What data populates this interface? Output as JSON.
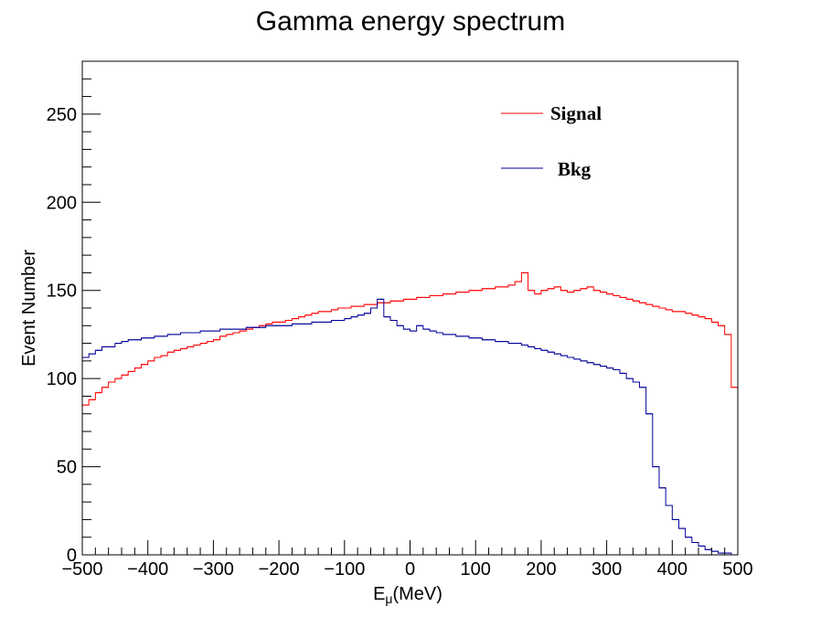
{
  "chart_data": {
    "type": "line",
    "title": "Gamma energy spectrum",
    "xlabel_main": "E",
    "xlabel_sub": "μ",
    "xlabel_unit": "(MeV)",
    "ylabel": "Event Number",
    "xlim": [
      -500,
      500
    ],
    "ylim": [
      0,
      280
    ],
    "x_ticks": [
      -500,
      -400,
      -300,
      -200,
      -100,
      0,
      100,
      200,
      300,
      400,
      500
    ],
    "y_ticks": [
      0,
      50,
      100,
      150,
      200,
      250
    ],
    "grid": false,
    "legend_position": "top-right",
    "bin_width": 10,
    "series": [
      {
        "name": "Signal",
        "color": "#ff0000",
        "step": true,
        "x": [
          -500,
          -490,
          -480,
          -470,
          -460,
          -450,
          -440,
          -430,
          -420,
          -410,
          -400,
          -390,
          -380,
          -370,
          -360,
          -350,
          -340,
          -330,
          -320,
          -310,
          -300,
          -290,
          -280,
          -270,
          -260,
          -250,
          -240,
          -230,
          -220,
          -210,
          -200,
          -190,
          -180,
          -170,
          -160,
          -150,
          -140,
          -130,
          -120,
          -110,
          -100,
          -90,
          -80,
          -70,
          -60,
          -50,
          -40,
          -30,
          -20,
          -10,
          0,
          10,
          20,
          30,
          40,
          50,
          60,
          70,
          80,
          90,
          100,
          110,
          120,
          130,
          140,
          150,
          160,
          170,
          180,
          190,
          200,
          210,
          220,
          230,
          240,
          250,
          260,
          270,
          280,
          290,
          300,
          310,
          320,
          330,
          340,
          350,
          360,
          370,
          380,
          390,
          400,
          410,
          420,
          430,
          440,
          450,
          460,
          470,
          480,
          490
        ],
        "y": [
          85,
          88,
          92,
          95,
          98,
          100,
          102,
          104,
          106,
          108,
          110,
          112,
          113,
          115,
          116,
          117,
          118,
          119,
          120,
          121,
          122,
          124,
          125,
          126,
          127,
          128,
          129,
          130,
          131,
          132,
          132,
          133,
          134,
          135,
          136,
          137,
          138,
          138,
          139,
          140,
          140,
          141,
          141,
          142,
          142,
          143,
          143,
          144,
          144,
          145,
          145,
          146,
          146,
          147,
          147,
          148,
          148,
          149,
          149,
          150,
          150,
          151,
          151,
          152,
          152,
          153,
          155,
          160,
          150,
          148,
          150,
          151,
          152,
          150,
          149,
          150,
          151,
          152,
          150,
          149,
          148,
          147,
          146,
          145,
          144,
          143,
          142,
          141,
          140,
          139,
          138,
          138,
          137,
          136,
          135,
          134,
          132,
          130,
          125,
          95
        ]
      },
      {
        "name": "Bkg",
        "color": "#000099",
        "step": true,
        "x": [
          -500,
          -490,
          -480,
          -470,
          -460,
          -450,
          -440,
          -430,
          -420,
          -410,
          -400,
          -390,
          -380,
          -370,
          -360,
          -350,
          -340,
          -330,
          -320,
          -310,
          -300,
          -290,
          -280,
          -270,
          -260,
          -250,
          -240,
          -230,
          -220,
          -210,
          -200,
          -190,
          -180,
          -170,
          -160,
          -150,
          -140,
          -130,
          -120,
          -110,
          -100,
          -90,
          -80,
          -70,
          -60,
          -50,
          -40,
          -30,
          -20,
          -10,
          0,
          10,
          20,
          30,
          40,
          50,
          60,
          70,
          80,
          90,
          100,
          110,
          120,
          130,
          140,
          150,
          160,
          170,
          180,
          190,
          200,
          210,
          220,
          230,
          240,
          250,
          260,
          270,
          280,
          290,
          300,
          310,
          320,
          330,
          340,
          350,
          360,
          370,
          380,
          390,
          400,
          410,
          420,
          430,
          440,
          450,
          460,
          470,
          480,
          490
        ],
        "y": [
          112,
          114,
          116,
          118,
          118,
          120,
          121,
          122,
          122,
          123,
          123,
          124,
          124,
          125,
          125,
          126,
          126,
          126,
          127,
          127,
          127,
          128,
          128,
          128,
          128,
          129,
          129,
          129,
          130,
          130,
          130,
          130,
          131,
          131,
          131,
          132,
          132,
          132,
          133,
          133,
          134,
          135,
          136,
          137,
          140,
          145,
          135,
          133,
          130,
          128,
          127,
          130,
          128,
          127,
          126,
          125,
          125,
          124,
          124,
          123,
          123,
          122,
          122,
          121,
          121,
          120,
          120,
          119,
          118,
          117,
          116,
          115,
          114,
          113,
          112,
          111,
          110,
          109,
          108,
          107,
          106,
          105,
          103,
          100,
          98,
          95,
          80,
          50,
          38,
          28,
          20,
          15,
          10,
          7,
          5,
          3,
          2,
          1,
          1,
          0
        ]
      }
    ]
  }
}
